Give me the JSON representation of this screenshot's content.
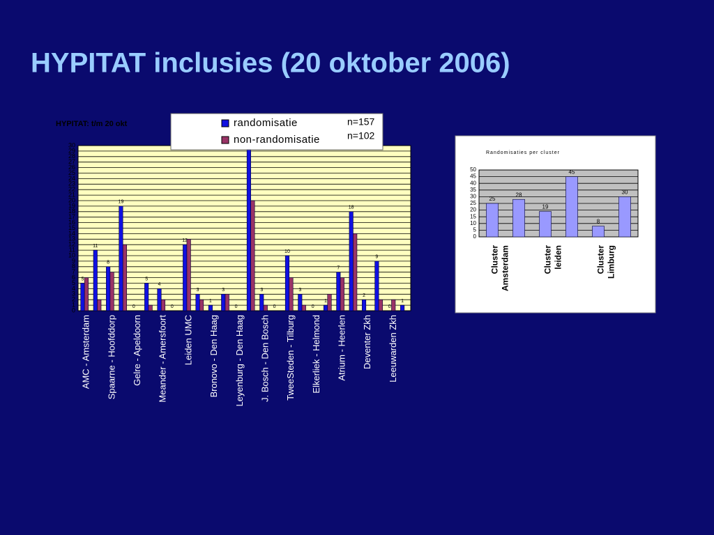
{
  "title": "HYPITAT inclusies (20 oktober 2006)",
  "chart_data": [
    {
      "type": "bar",
      "title": "HYPITAT: t/m 20 okt",
      "annotations": [
        "n=157",
        "n=102"
      ],
      "categories": [
        "AMC - Amsterdam",
        null,
        "Spaarne - Hoofddorp",
        null,
        "Gelre - Apeldoorn",
        null,
        "Meander - Amersfoort",
        null,
        "Leiden UMC",
        null,
        "Bronovo - Den Haag",
        null,
        "Leyenburg - Den Haag",
        null,
        "J. Bosch - Den Bosch",
        null,
        "TweeSteden - Tilburg",
        null,
        "Elkerliek - Helmond",
        null,
        "Atrium - Heerlen",
        null,
        "Deventer Zkh",
        null,
        "Leeuwarden Zkh",
        null
      ],
      "series": [
        {
          "name": "randomisatie",
          "color": "#1010e0",
          "values": [
            5,
            11,
            8,
            19,
            0,
            5,
            4,
            0,
            12,
            3,
            1,
            3,
            0,
            30,
            3,
            0,
            10,
            3,
            0,
            1,
            7,
            18,
            2,
            9,
            0,
            1
          ],
          "value_labels": [
            "5",
            "11",
            "8",
            "19",
            "0",
            "5",
            "4",
            "0",
            "12",
            "3",
            "1",
            "3",
            "0",
            null,
            "3",
            "0",
            "10",
            "3",
            "0",
            "1",
            "7",
            "18",
            "2",
            "9",
            "0",
            "1"
          ]
        },
        {
          "name": "non-randomisatie",
          "color": "#993366",
          "values": [
            6,
            2,
            7,
            12,
            0,
            1,
            2,
            0,
            13,
            2,
            0,
            3,
            0,
            20,
            1,
            0,
            6,
            1,
            0,
            3,
            6,
            14,
            0,
            2,
            2,
            0
          ]
        }
      ],
      "ylim": [
        0,
        30
      ],
      "yticks": [
        0,
        1,
        2,
        3,
        4,
        5,
        6,
        7,
        8,
        9,
        10,
        11,
        12,
        13,
        14,
        15,
        16,
        17,
        18,
        19,
        20,
        21,
        22,
        23,
        24,
        25,
        26,
        27,
        28,
        29,
        30
      ],
      "grid": true,
      "legend": "top"
    },
    {
      "type": "bar",
      "title": "Randomisaties per cluster",
      "categories": [
        "Cluster Amsterdam",
        null,
        "Cluster leiden",
        null,
        "Cluster Limburg",
        null
      ],
      "values": [
        25,
        28,
        19,
        45,
        8,
        30
      ],
      "color": "#9999ff",
      "ylim": [
        0,
        50
      ],
      "yticks": [
        0,
        5,
        10,
        15,
        20,
        25,
        30,
        35,
        40,
        45,
        50
      ],
      "grid": true
    }
  ]
}
